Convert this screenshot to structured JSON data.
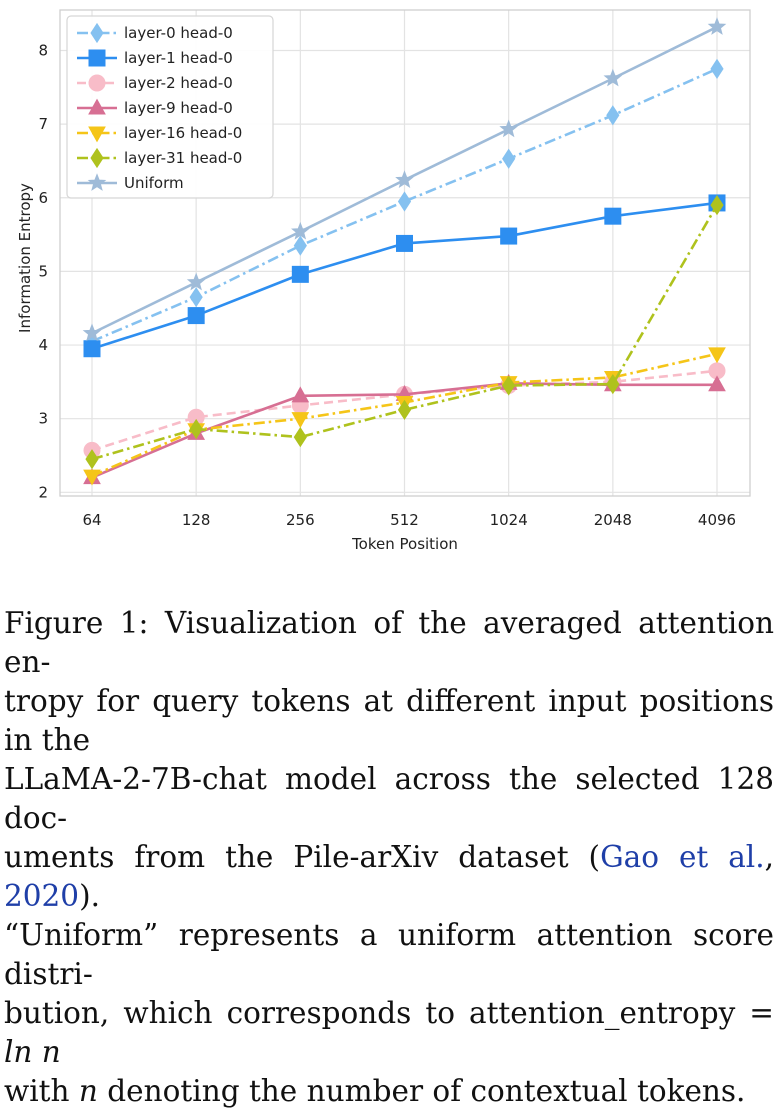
{
  "chart_data": {
    "type": "line",
    "xlabel": "Token Position",
    "ylabel": "Information Entropy",
    "categories": [
      "64",
      "128",
      "256",
      "512",
      "1024",
      "2048",
      "4096"
    ],
    "ylim": [
      1.95,
      8.55
    ],
    "yticks": [
      2,
      3,
      4,
      5,
      6,
      7,
      8
    ],
    "grid": true,
    "legend_position": "top-left",
    "series": [
      {
        "name": "layer-0 head-0",
        "color": "#85c1f0",
        "marker": "diamond",
        "dash": "dashdot",
        "values": [
          4.05,
          4.65,
          5.35,
          5.95,
          6.53,
          7.12,
          7.75
        ]
      },
      {
        "name": "layer-1 head-0",
        "color": "#2d8ef0",
        "marker": "square",
        "dash": "solid",
        "values": [
          3.95,
          4.4,
          4.96,
          5.38,
          5.48,
          5.75,
          5.93
        ]
      },
      {
        "name": "layer-2 head-0",
        "color": "#f8bcc8",
        "marker": "circle",
        "dash": "dashed",
        "values": [
          2.57,
          3.02,
          3.18,
          3.33,
          3.45,
          3.5,
          3.65
        ]
      },
      {
        "name": "layer-9 head-0",
        "color": "#d76f93",
        "marker": "triangle-up",
        "dash": "solid",
        "values": [
          2.2,
          2.8,
          3.31,
          3.33,
          3.48,
          3.46,
          3.46
        ]
      },
      {
        "name": "layer-16 head-0",
        "color": "#f5c518",
        "marker": "triangle-down",
        "dash": "dashdot",
        "values": [
          2.22,
          2.85,
          3.0,
          3.22,
          3.49,
          3.56,
          3.88
        ]
      },
      {
        "name": "layer-31 head-0",
        "color": "#afc21d",
        "marker": "diamond",
        "dash": "dashdot",
        "values": [
          2.45,
          2.86,
          2.75,
          3.12,
          3.45,
          3.47,
          5.9
        ]
      },
      {
        "name": "Uniform",
        "color": "#9fbbd8",
        "marker": "star",
        "dash": "solid",
        "values": [
          4.16,
          4.85,
          5.54,
          6.24,
          6.93,
          7.62,
          8.32
        ]
      }
    ]
  },
  "caption": {
    "line1": "Figure 1: Visualization of the averaged attention en-",
    "line2": "tropy for query tokens at different input positions in the",
    "line3": "LLaMA-2-7B-chat model across the selected 128 doc-",
    "line4_pre": "uments from the Pile-arXiv dataset (",
    "line4_cite_author": "Gao et al.",
    "line4_cite_sep": ", ",
    "line4_cite_year": "2020",
    "line4_post": ").",
    "line5": "“Uniform” represents a uniform attention score distri-",
    "line6_pre": "bution, which corresponds to attention_entropy = ",
    "line6_math": "ln n",
    "line7_pre": "with ",
    "line7_math": "n",
    "line7_post": " denoting the number of contextual tokens."
  }
}
